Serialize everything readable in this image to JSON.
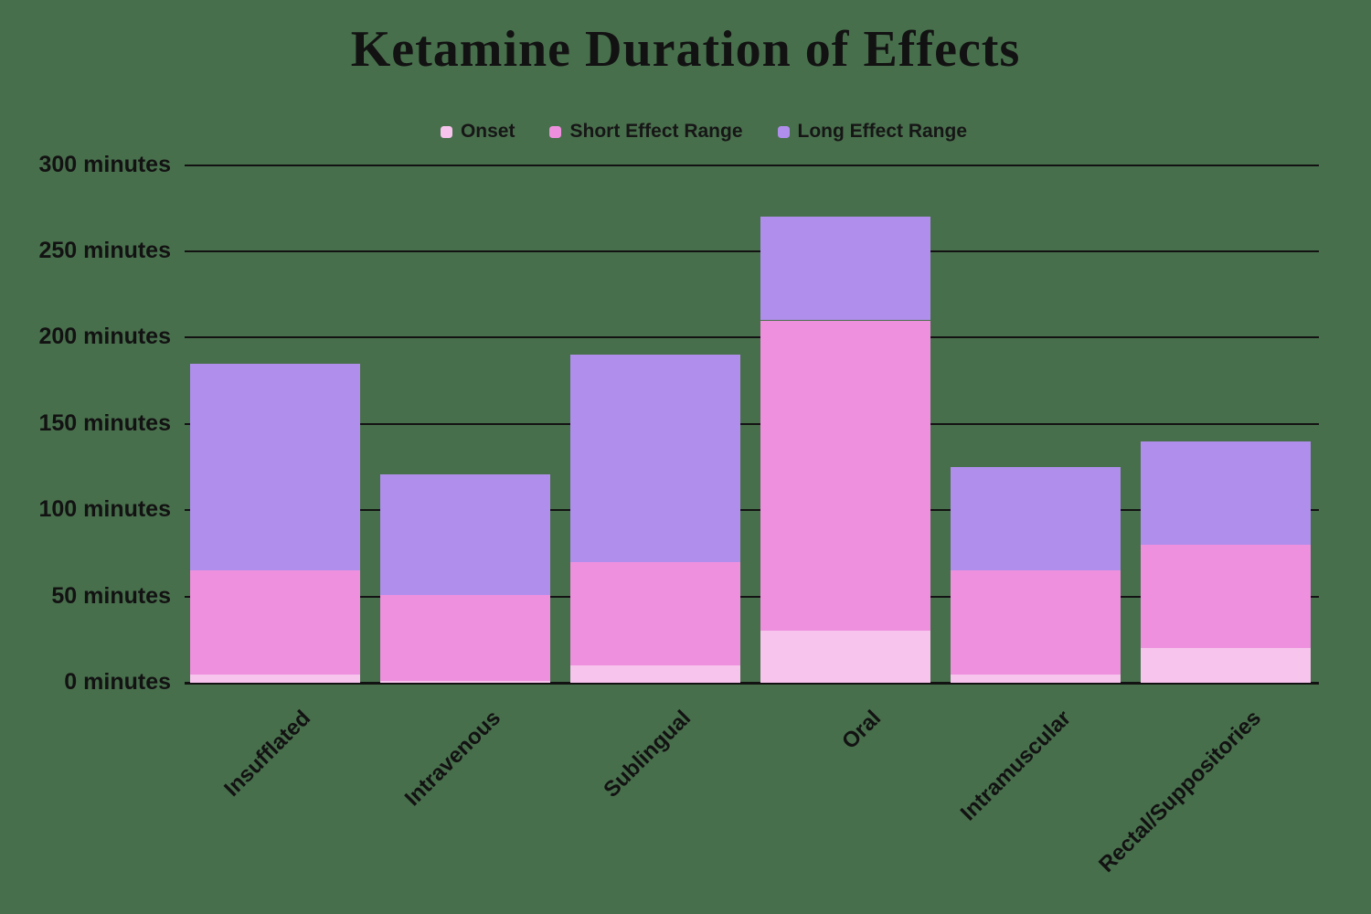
{
  "title": "Ketamine Duration of Effects",
  "colors": {
    "background": "#486f4c",
    "grid": "#121212",
    "text": "#121212",
    "onset": "#f6c4ec",
    "short_effect": "#ee90de",
    "long_effect": "#b08fec"
  },
  "chart_data": {
    "type": "bar",
    "stacked": true,
    "title": "Ketamine Duration of Effects",
    "categories": [
      "Insufflated",
      "Intravenous",
      "Sublingual",
      "Oral",
      "Intramuscular",
      "Rectal/Suppositories"
    ],
    "series": [
      {
        "name": "Onset",
        "color": "#f6c4ec",
        "values": [
          5,
          1,
          10,
          30,
          5,
          20
        ]
      },
      {
        "name": "Short Effect Range",
        "color": "#ee90de",
        "values": [
          60,
          50,
          60,
          180,
          60,
          60
        ]
      },
      {
        "name": "Long Effect Range",
        "color": "#b08fec",
        "values": [
          120,
          70,
          120,
          60,
          60,
          60
        ]
      }
    ],
    "stack_totals": [
      185,
      121,
      190,
      270,
      125,
      140
    ],
    "yticks": [
      0,
      50,
      100,
      150,
      200,
      250,
      300
    ],
    "tick_labels": [
      "0 minutes",
      "50 minutes",
      "100 minutes",
      "150 minutes",
      "200 minutes",
      "250 minutes",
      "300 minutes"
    ],
    "ylim": [
      0,
      300
    ],
    "xlabel": "",
    "ylabel": "",
    "grid": true,
    "legend_position": "top"
  }
}
